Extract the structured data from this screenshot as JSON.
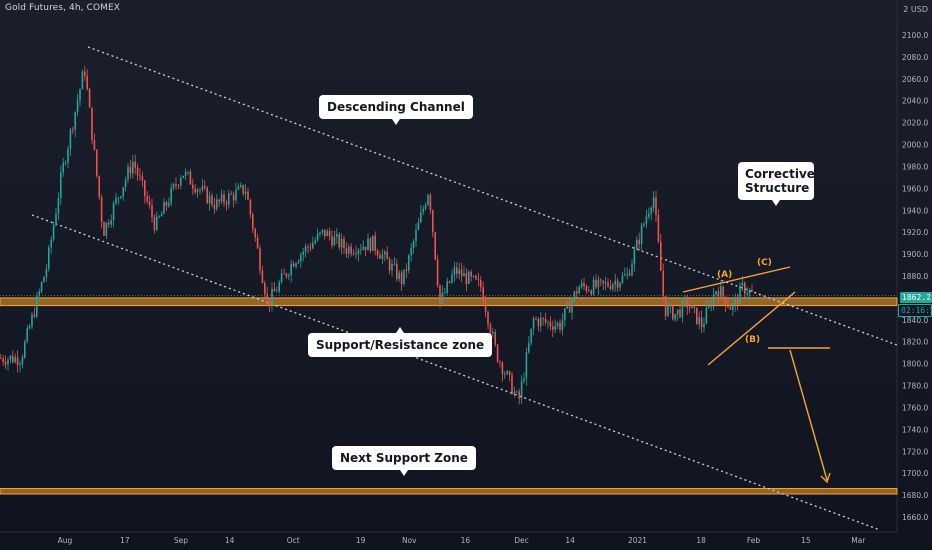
{
  "header": {
    "title": "Gold Futures, 4h, COMEX",
    "currency_small": "2",
    "currency": "USD"
  },
  "chart_data": {
    "type": "candlestick",
    "title": "Gold Futures, 4h, COMEX",
    "y_axis": {
      "ticks": [
        "2100.0",
        "2080.0",
        "2060.0",
        "2040.0",
        "2020.0",
        "2000.0",
        "1980.0",
        "1960.0",
        "1940.0",
        "1920.0",
        "1900.0",
        "1880.0",
        "1860.0",
        "1840.0",
        "1820.0",
        "1800.0",
        "1780.0",
        "1760.0",
        "1740.0",
        "1720.0",
        "1700.0",
        "1680.0",
        "1660.0"
      ],
      "ylim": [
        1650,
        2125
      ],
      "position": "right"
    },
    "x_axis": {
      "ticks": [
        "Aug",
        "17",
        "Sep",
        "14",
        "Oct",
        "19",
        "Nov",
        "16",
        "Dec",
        "14",
        "2021",
        "18",
        "Feb",
        "15",
        "Mar"
      ]
    },
    "series": [
      {
        "name": "",
        "path_points": [
          {
            "x": "Jul 20",
            "y": 1805
          },
          {
            "x": "Jul 27",
            "y": 1890
          },
          {
            "x": "Jul 31",
            "y": 1975
          },
          {
            "x": "Aug 6",
            "y": 2070
          },
          {
            "x": "Aug 11",
            "y": 1920
          },
          {
            "x": "Aug 14",
            "y": 1945
          },
          {
            "x": "Aug 19",
            "y": 1985
          },
          {
            "x": "Aug 25",
            "y": 1925
          },
          {
            "x": "Sep 1",
            "y": 1975
          },
          {
            "x": "Sep 10",
            "y": 1945
          },
          {
            "x": "Sep 18",
            "y": 1960
          },
          {
            "x": "Sep 24",
            "y": 1855
          },
          {
            "x": "Oct 1",
            "y": 1895
          },
          {
            "x": "Oct 9",
            "y": 1920
          },
          {
            "x": "Oct 15",
            "y": 1905
          },
          {
            "x": "Oct 22",
            "y": 1910
          },
          {
            "x": "Oct 30",
            "y": 1875
          },
          {
            "x": "Nov 6",
            "y": 1960
          },
          {
            "x": "Nov 9",
            "y": 1855
          },
          {
            "x": "Nov 13",
            "y": 1885
          },
          {
            "x": "Nov 20",
            "y": 1870
          },
          {
            "x": "Nov 24",
            "y": 1810
          },
          {
            "x": "Nov 30",
            "y": 1765
          },
          {
            "x": "Dec 4",
            "y": 1840
          },
          {
            "x": "Dec 11",
            "y": 1835
          },
          {
            "x": "Dec 16",
            "y": 1870
          },
          {
            "x": "Dec 22",
            "y": 1870
          },
          {
            "x": "Dec 29",
            "y": 1880
          },
          {
            "x": "Jan 5",
            "y": 1955
          },
          {
            "x": "Jan 8",
            "y": 1850
          },
          {
            "x": "Jan 11",
            "y": 1845
          },
          {
            "x": "Jan 14",
            "y": 1855
          },
          {
            "x": "Jan 18",
            "y": 1835
          },
          {
            "x": "Jan 22",
            "y": 1870
          },
          {
            "x": "Jan 26",
            "y": 1850
          },
          {
            "x": "Jan 29",
            "y": 1870
          },
          {
            "x": "Feb 1",
            "y": 1862.2
          }
        ]
      }
    ],
    "last_price": "1862.2",
    "countdown": "02:16:57",
    "annotations": {
      "descending_channel": "Descending Channel",
      "support_resistance_zone": "Support/Resistance zone",
      "next_support_zone": "Next Support Zone",
      "corrective_structure": "Corrective Structure",
      "wave_a": "(A)",
      "wave_b": "(B)",
      "wave_c": "(C)"
    },
    "zones": [
      {
        "name": "Support/Resistance zone",
        "y_range": [
          1853,
          1860
        ]
      },
      {
        "name": "Next Support Zone",
        "y_range": [
          1681,
          1686
        ]
      }
    ],
    "colors": {
      "up": "#26a69a",
      "down": "#ef5350",
      "zone": "#f7a531",
      "background": "#131722"
    },
    "grid": false
  }
}
